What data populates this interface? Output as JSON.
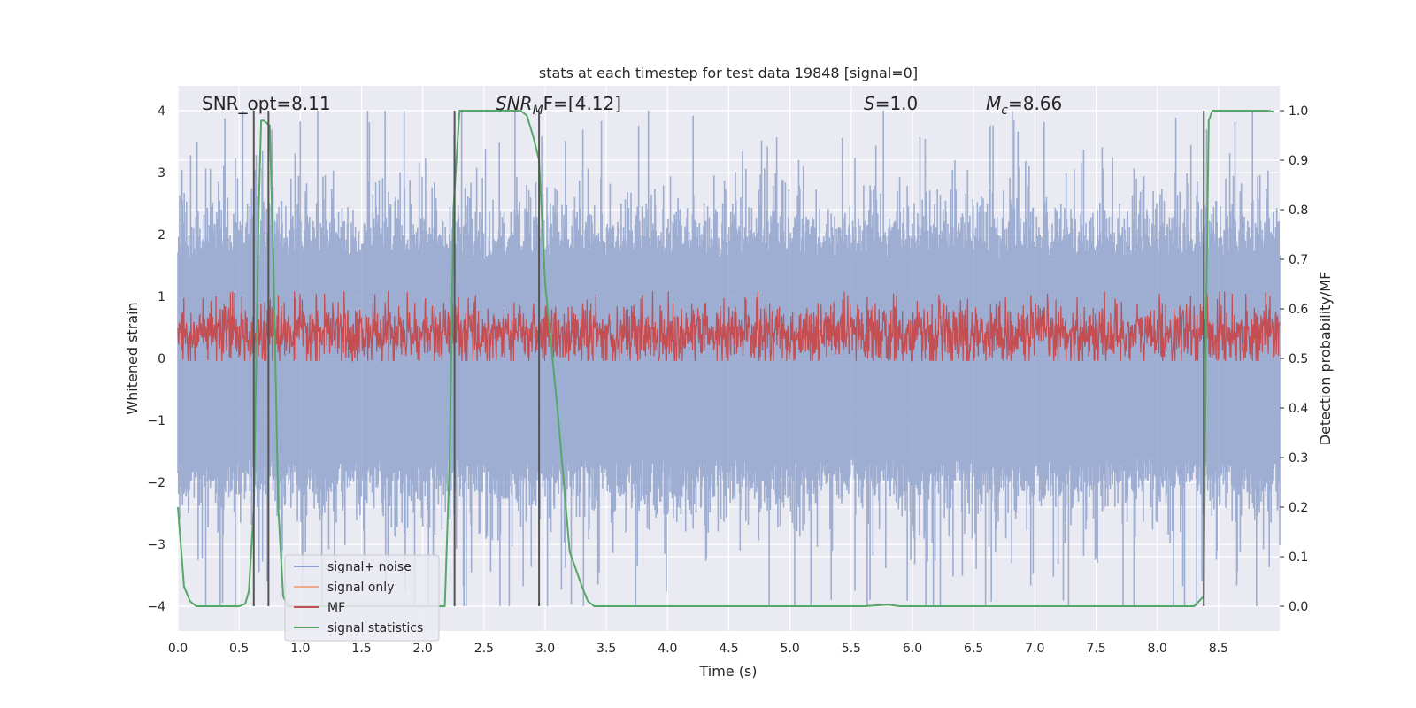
{
  "chart_data": {
    "type": "line",
    "title": "stats at each timestep for test data 19848 [signal=0]",
    "xlabel": "Time (s)",
    "ylabel": "Whitened strain",
    "ylabel_right": "Detection probability/MF",
    "xlim": [
      0.0,
      9.0
    ],
    "ylim": [
      -4.4,
      4.4
    ],
    "ylim_right": [
      -0.05,
      1.05
    ],
    "x_ticks": [
      "0.0",
      "0.5",
      "1.0",
      "1.5",
      "2.0",
      "2.5",
      "3.0",
      "3.5",
      "4.0",
      "4.5",
      "5.0",
      "5.5",
      "6.0",
      "6.5",
      "7.0",
      "7.5",
      "8.0",
      "8.5"
    ],
    "y_ticks": [
      "4",
      "3",
      "2",
      "1",
      "0",
      "−1",
      "−2",
      "−3",
      "−4"
    ],
    "y_ticks_right": [
      "1.0",
      "0.9",
      "0.8",
      "0.7",
      "0.6",
      "0.5",
      "0.4",
      "0.3",
      "0.2",
      "0.1",
      "0.0"
    ],
    "grid": true,
    "legend_position": "lower-left",
    "annotations": {
      "snr_opt": "SNR_opt=8.11",
      "snr_mf_sym": "SNR",
      "snr_mf_sub": "M",
      "snr_mf_rest": "F=[4.12]",
      "s_sym": "S",
      "s_rest": "=1.0",
      "mc_sym": "M",
      "mc_sub": "c",
      "mc_rest": "=8.66"
    },
    "series": [
      {
        "name": "signal+ noise",
        "color": "#8da0cb",
        "envelope_typical": [
          -1.6,
          1.6
        ],
        "peak_range": [
          -4.0,
          4.0
        ]
      },
      {
        "name": "signal only",
        "color": "#f0a88a",
        "values": []
      },
      {
        "name": "MF",
        "color": "#c44e52",
        "axis": "right",
        "band": [
          0.5,
          0.6
        ]
      },
      {
        "name": "signal statistics",
        "color": "#55a868",
        "axis": "right",
        "x": [
          0.0,
          0.05,
          0.1,
          0.15,
          0.2,
          0.3,
          0.4,
          0.5,
          0.55,
          0.58,
          0.62,
          0.66,
          0.68,
          0.7,
          0.75,
          0.78,
          0.82,
          0.86,
          0.9,
          1.0,
          1.5,
          2.0,
          2.18,
          2.22,
          2.25,
          2.3,
          2.4,
          2.6,
          2.8,
          2.85,
          2.9,
          2.95,
          3.0,
          3.1,
          3.2,
          3.3,
          3.35,
          3.4,
          3.5,
          4.0,
          5.0,
          5.6,
          5.8,
          5.9,
          6.0,
          7.0,
          8.0,
          8.3,
          8.38,
          8.4,
          8.42,
          8.45,
          8.5,
          8.7,
          8.9,
          8.95
        ],
        "y": [
          0.2,
          0.04,
          0.01,
          0.0,
          0.0,
          0.0,
          0.0,
          0.0,
          0.005,
          0.03,
          0.2,
          0.8,
          0.98,
          0.98,
          0.97,
          0.7,
          0.2,
          0.02,
          0.0,
          0.0,
          0.0,
          0.0,
          0.0,
          0.3,
          0.8,
          1.0,
          1.0,
          1.0,
          1.0,
          0.99,
          0.95,
          0.9,
          0.65,
          0.4,
          0.11,
          0.04,
          0.01,
          0.0,
          0.0,
          0.0,
          0.0,
          0.0,
          0.003,
          0.0,
          0.0,
          0.0,
          0.0,
          0.0,
          0.02,
          0.6,
          0.98,
          1.0,
          1.0,
          1.0,
          1.0,
          0.998
        ]
      }
    ],
    "vlines_x": [
      0.62,
      0.74,
      2.26,
      2.95,
      8.38
    ],
    "vline_color": "#555555"
  }
}
